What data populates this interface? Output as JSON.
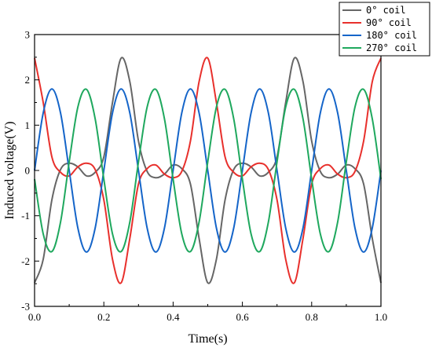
{
  "chart_data": {
    "type": "line",
    "title": "",
    "xlabel": "Time(s)",
    "ylabel": "Induced voltage(V)",
    "xlim": [
      0,
      1
    ],
    "ylim": [
      -3,
      3
    ],
    "xticks": [
      "0.0",
      "0.2",
      "0.4",
      "0.6",
      "0.8",
      "1.0"
    ],
    "yticks": [
      "-3",
      "-2",
      "-1",
      "0",
      "1",
      "2",
      "3"
    ],
    "grid": false,
    "legend_position": "top-right",
    "x": [
      0.0,
      0.025,
      0.05,
      0.075,
      0.1,
      0.125,
      0.15,
      0.175,
      0.2,
      0.225,
      0.25,
      0.275,
      0.3,
      0.325,
      0.35,
      0.375,
      0.4,
      0.425,
      0.45,
      0.475,
      0.5,
      0.525,
      0.55,
      0.575,
      0.6,
      0.625,
      0.65,
      0.675,
      0.7,
      0.725,
      0.75,
      0.775,
      0.8,
      0.825,
      0.85,
      0.875,
      0.9,
      0.925,
      0.95,
      0.975,
      1.0
    ],
    "series": [
      {
        "name": "0° coil",
        "color": "#666666",
        "values": [
          -2.48,
          -1.96,
          -0.65,
          0.02,
          0.16,
          0.08,
          -0.12,
          -0.04,
          0.3,
          1.5,
          2.48,
          1.96,
          0.65,
          -0.02,
          -0.16,
          -0.08,
          0.12,
          0.04,
          -0.3,
          -1.5,
          -2.48,
          -1.96,
          -0.65,
          0.02,
          0.16,
          0.08,
          -0.12,
          -0.04,
          0.3,
          1.5,
          2.48,
          1.96,
          0.65,
          -0.02,
          -0.16,
          -0.08,
          0.12,
          0.04,
          -0.3,
          -1.5,
          -2.48
        ]
      },
      {
        "name": "90° coil",
        "color": "#e8302c",
        "values": [
          2.48,
          1.5,
          0.3,
          -0.04,
          -0.12,
          0.08,
          0.16,
          0.02,
          -0.65,
          -1.96,
          -2.48,
          -1.5,
          -0.3,
          0.04,
          0.12,
          -0.08,
          -0.16,
          -0.02,
          0.65,
          1.96,
          2.48,
          1.5,
          0.3,
          -0.04,
          -0.12,
          0.08,
          0.16,
          0.02,
          -0.65,
          -1.96,
          -2.48,
          -1.5,
          -0.3,
          0.04,
          0.12,
          -0.08,
          -0.16,
          -0.02,
          0.65,
          1.96,
          2.48
        ]
      },
      {
        "name": "180° coil",
        "color": "#1565c9",
        "values": [
          0.0,
          1.27,
          1.8,
          1.27,
          0.0,
          -1.27,
          -1.8,
          -1.27,
          0.0,
          1.27,
          1.8,
          1.27,
          0.0,
          -1.27,
          -1.8,
          -1.27,
          0.0,
          1.27,
          1.8,
          1.27,
          0.0,
          -1.27,
          -1.8,
          -1.27,
          0.0,
          1.27,
          1.8,
          1.27,
          0.0,
          -1.27,
          -1.8,
          -1.27,
          0.0,
          1.27,
          1.8,
          1.27,
          0.0,
          -1.27,
          -1.8,
          -1.27,
          0.0
        ]
      },
      {
        "name": "270° coil",
        "color": "#1fa85e",
        "values": [
          -0.19,
          -1.4,
          -1.79,
          -1.14,
          0.19,
          1.4,
          1.79,
          1.14,
          -0.19,
          -1.4,
          -1.79,
          -1.14,
          0.19,
          1.4,
          1.79,
          1.14,
          -0.19,
          -1.4,
          -1.79,
          -1.14,
          0.19,
          1.4,
          1.79,
          1.14,
          -0.19,
          -1.4,
          -1.79,
          -1.14,
          0.19,
          1.4,
          1.79,
          1.14,
          -0.19,
          -1.4,
          -1.79,
          -1.14,
          0.19,
          1.4,
          1.79,
          1.14,
          -0.19
        ]
      }
    ]
  }
}
